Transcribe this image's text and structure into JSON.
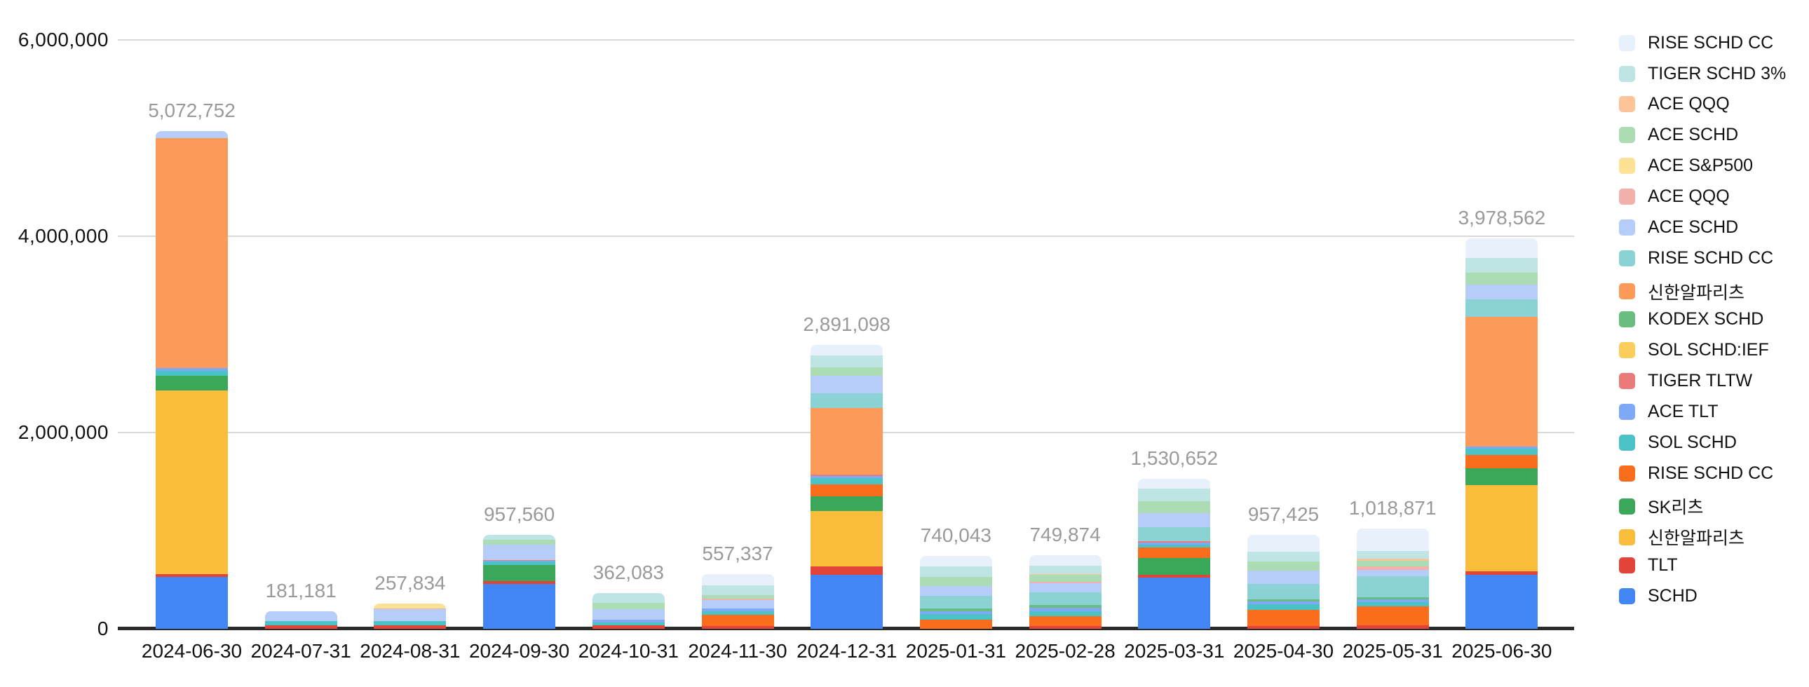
{
  "chart_data": {
    "type": "bar",
    "stacked": true,
    "title": "",
    "categories": [
      "2024-06-30",
      "2024-07-31",
      "2024-08-31",
      "2024-09-30",
      "2024-10-31",
      "2024-11-30",
      "2024-12-31",
      "2025-01-31",
      "2025-02-28",
      "2025-03-31",
      "2025-04-30",
      "2025-05-31",
      "2025-06-30"
    ],
    "totals": [
      5072752,
      181181,
      257834,
      957560,
      362083,
      557337,
      2891098,
      740043,
      749874,
      1530652,
      957425,
      1018871,
      3978562
    ],
    "total_labels": [
      "5,072,752",
      "181,181",
      "257,834",
      "957,560",
      "362,083",
      "557,337",
      "2,891,098",
      "740,043",
      "749,874",
      "1,530,652",
      "957,425",
      "1,018,871",
      "3,978,562"
    ],
    "y_axis": {
      "min": 0,
      "max": 6000000,
      "tick_values": [
        0,
        2000000,
        4000000,
        6000000
      ],
      "tick_labels": [
        "0",
        "2,000,000",
        "4,000,000",
        "6,000,000"
      ],
      "grid": true
    },
    "legend_position": "right",
    "legend_note": "legend lists series top-to-bottom in reverse stacking order",
    "series_note": "series listed bottom-of-stack first; values estimated from pixel heights, columns sum to printed totals",
    "series": [
      {
        "name": "SCHD",
        "color": "#4285F4",
        "values": [
          530000,
          0,
          0,
          460000,
          0,
          0,
          551000,
          0,
          0,
          522652,
          0,
          0,
          548000
        ]
      },
      {
        "name": "TLT",
        "color": "#E2443A",
        "values": [
          30000,
          35000,
          35000,
          28000,
          35000,
          31000,
          84000,
          0,
          28000,
          31000,
          28000,
          36000,
          36000
        ]
      },
      {
        "name": "신한알파리츠",
        "color": "#F9BC3B",
        "values": [
          1870000,
          0,
          0,
          0,
          0,
          0,
          562000,
          0,
          0,
          0,
          0,
          0,
          880000
        ]
      },
      {
        "name": "SK리츠",
        "color": "#3BA758",
        "values": [
          150000,
          0,
          0,
          160000,
          0,
          0,
          154000,
          0,
          0,
          171000,
          0,
          0,
          170000
        ]
      },
      {
        "name": "RISE SCHD CC",
        "color": "#F96D1D",
        "values": [
          0,
          0,
          0,
          0,
          0,
          111000,
          118000,
          95000,
          100000,
          104000,
          166000,
          195000,
          140000
        ]
      },
      {
        "name": "SOL SCHD",
        "color": "#4BC2C5",
        "values": [
          47000,
          45000,
          42000,
          35000,
          28000,
          40000,
          69000,
          54000,
          52000,
          31000,
          59000,
          43000,
          60000
        ]
      },
      {
        "name": "ACE TLT",
        "color": "#7FA9F7",
        "values": [
          30000,
          0,
          0,
          8000,
          31000,
          24000,
          18000,
          33000,
          33000,
          17000,
          24000,
          24000,
          20000
        ]
      },
      {
        "name": "TIGER TLTW",
        "color": "#EB7B7B",
        "values": [
          0,
          0,
          0,
          12000,
          0,
          0,
          15000,
          0,
          0,
          14000,
          0,
          0,
          0
        ]
      },
      {
        "name": "SOL SCHD:IEF",
        "color": "#FBCD5A",
        "values": [
          0,
          0,
          0,
          0,
          0,
          0,
          0,
          0,
          0,
          0,
          0,
          0,
          0
        ]
      },
      {
        "name": "KODEX SCHD",
        "color": "#69BE7F",
        "values": [
          0,
          0,
          0,
          0,
          0,
          0,
          0,
          28000,
          31000,
          0,
          24000,
          21000,
          0
        ]
      },
      {
        "name": "신한알파리츠",
        "color": "#FB9A59",
        "values": [
          2344752,
          0,
          0,
          0,
          0,
          0,
          679098,
          0,
          0,
          0,
          0,
          0,
          1325562
        ]
      },
      {
        "name": "RISE SCHD CC",
        "color": "#8BD2D4",
        "values": [
          0,
          0,
          0,
          0,
          0,
          0,
          154000,
          126043,
          125000,
          147000,
          154000,
          214000,
          178000
        ]
      },
      {
        "name": "ACE SCHD",
        "color": "#B5CDF8",
        "values": [
          71000,
          101181,
          119834,
          158000,
          109083,
          89000,
          174000,
          99000,
          94874,
          142000,
          135000,
          67000,
          150000
        ]
      },
      {
        "name": "ACE QQQ",
        "color": "#F3B1AC",
        "values": [
          0,
          0,
          12000,
          0,
          0,
          14000,
          0,
          0,
          14000,
          0,
          0,
          36000,
          0
        ]
      },
      {
        "name": "ACE S&P500",
        "color": "#FDE296",
        "values": [
          0,
          0,
          49000,
          0,
          0,
          0,
          0,
          0,
          0,
          0,
          0,
          0,
          0
        ]
      },
      {
        "name": "ACE SCHD",
        "color": "#ACDCB4",
        "values": [
          0,
          0,
          0,
          47000,
          60000,
          33000,
          90000,
          96000,
          71000,
          123000,
          95000,
          59000,
          125000
        ]
      },
      {
        "name": "ACE QQQ",
        "color": "#FCC498",
        "values": [
          0,
          0,
          0,
          0,
          0,
          0,
          0,
          0,
          12000,
          0,
          0,
          17000,
          0
        ]
      },
      {
        "name": "TIGER SCHD 3%",
        "color": "#BEE5E4",
        "values": [
          0,
          0,
          0,
          49560,
          99000,
          102337,
          115000,
          108000,
          82000,
          126000,
          102000,
          83000,
          146000
        ]
      },
      {
        "name": "RISE SCHD CC",
        "color": "#E8F0FC",
        "values": [
          0,
          0,
          0,
          0,
          0,
          113000,
          108000,
          101000,
          107000,
          102000,
          170425,
          223871,
          200000
        ]
      }
    ]
  },
  "style_colors": {
    "background": "#FFFFFF",
    "gridline": "#D9D9D9",
    "axis_line": "#2B2B2B",
    "axis_label": "#111111",
    "value_label": "#9A9A9A",
    "legend_label": "#111111"
  }
}
